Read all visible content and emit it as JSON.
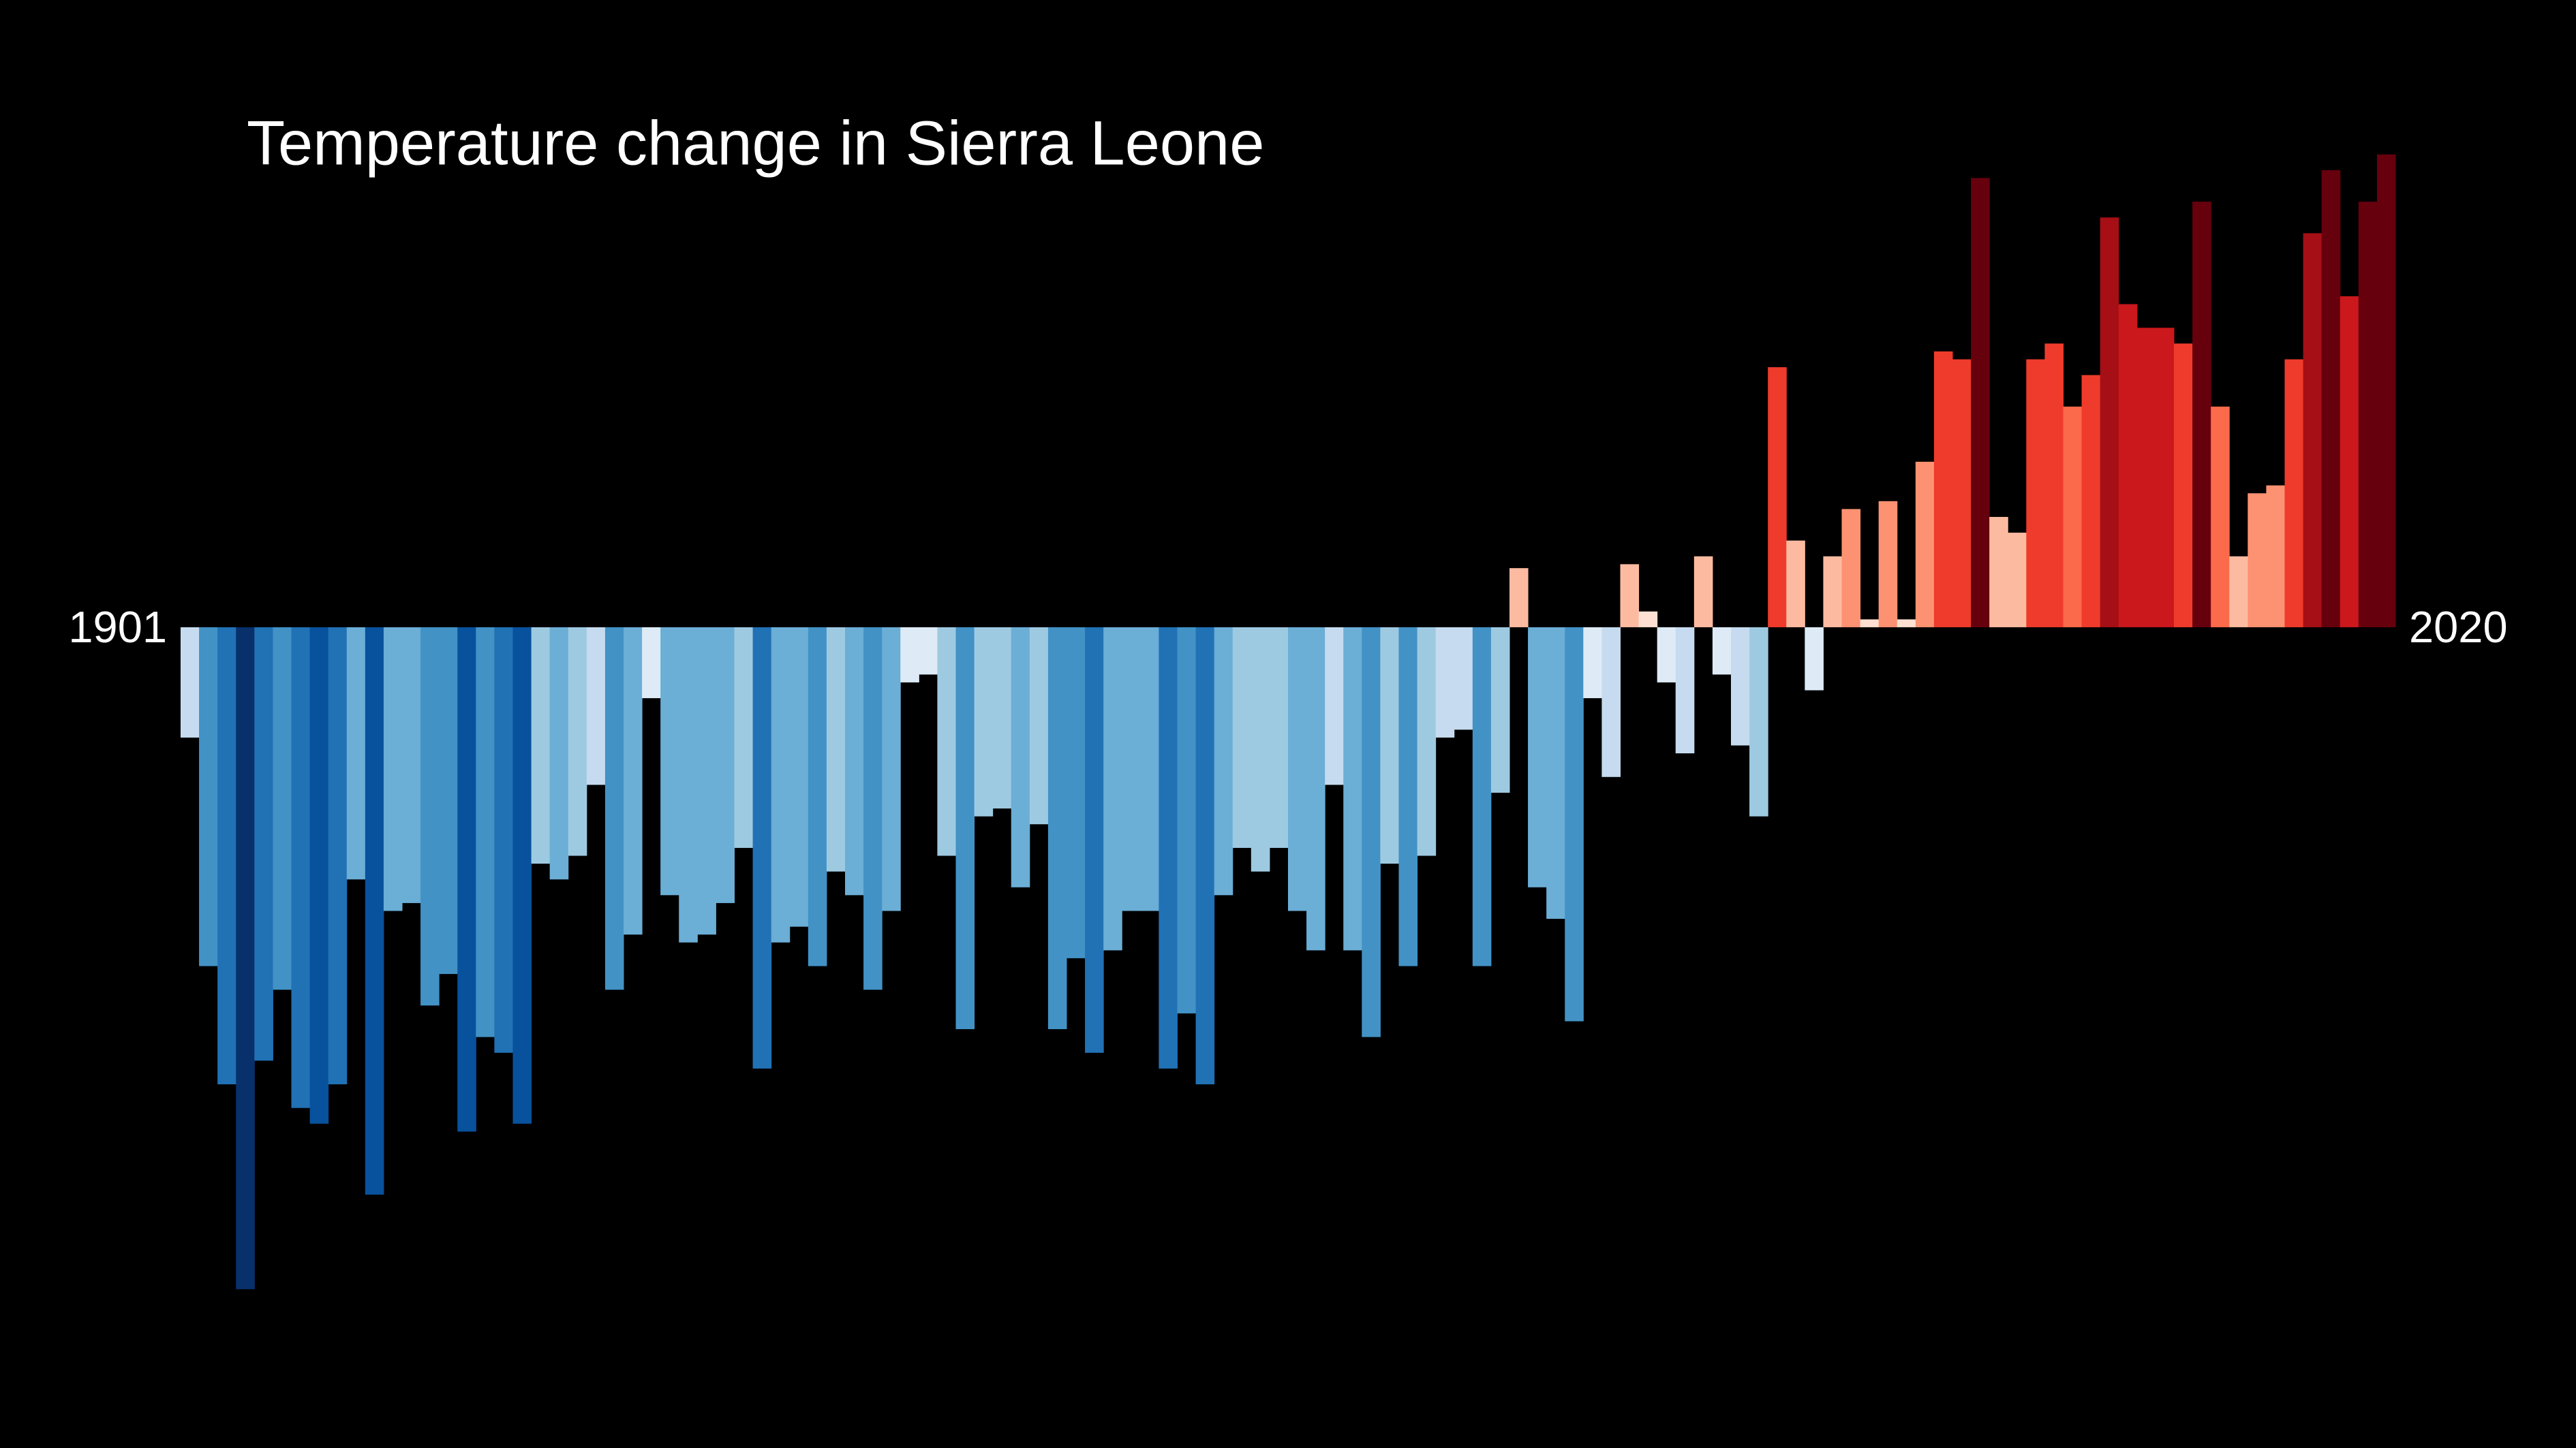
{
  "chart_data": {
    "type": "bar",
    "title": "Temperature change in Sierra Leone",
    "categories": [
      "1901",
      null,
      null,
      null,
      null,
      null,
      null,
      null,
      null,
      null,
      null,
      null,
      null,
      null,
      null,
      null,
      null,
      null,
      null,
      null,
      null,
      null,
      null,
      null,
      null,
      null,
      null,
      null,
      null,
      null,
      null,
      null,
      null,
      null,
      null,
      null,
      null,
      null,
      null,
      null,
      null,
      null,
      null,
      null,
      null,
      null,
      null,
      null,
      null,
      null,
      null,
      null,
      null,
      null,
      null,
      null,
      null,
      null,
      null,
      null,
      null,
      null,
      null,
      null,
      null,
      null,
      null,
      null,
      null,
      null,
      null,
      null,
      null,
      null,
      null,
      null,
      null,
      null,
      null,
      null,
      null,
      null,
      null,
      null,
      null,
      null,
      null,
      null,
      null,
      null,
      null,
      null,
      null,
      null,
      null,
      null,
      null,
      null,
      null,
      null,
      null,
      null,
      null,
      null,
      null,
      null,
      null,
      null,
      null,
      null,
      null,
      null,
      null,
      null,
      null,
      null,
      null,
      null,
      null,
      "2020"
    ],
    "values": [
      -0.14,
      -0.43,
      -0.58,
      -0.84,
      -0.55,
      -0.46,
      -0.61,
      -0.63,
      -0.58,
      -0.32,
      -0.72,
      -0.36,
      -0.35,
      -0.48,
      -0.44,
      -0.64,
      -0.52,
      -0.54,
      -0.63,
      -0.3,
      -0.32,
      -0.29,
      -0.2,
      -0.46,
      -0.39,
      -0.09,
      -0.34,
      -0.4,
      -0.39,
      -0.35,
      -0.28,
      -0.56,
      -0.4,
      -0.38,
      -0.43,
      -0.31,
      -0.34,
      -0.46,
      -0.36,
      -0.07,
      -0.06,
      -0.29,
      -0.51,
      -0.24,
      -0.23,
      -0.33,
      -0.25,
      -0.51,
      -0.42,
      -0.54,
      -0.41,
      -0.36,
      -0.36,
      -0.56,
      -0.49,
      -0.58,
      -0.34,
      -0.28,
      -0.31,
      -0.28,
      -0.36,
      -0.41,
      -0.2,
      -0.41,
      -0.52,
      -0.3,
      -0.43,
      -0.29,
      -0.14,
      -0.13,
      -0.43,
      -0.21,
      0.075,
      -0.33,
      -0.37,
      -0.5,
      -0.09,
      -0.19,
      0.08,
      0.02,
      -0.07,
      -0.16,
      0.09,
      -0.06,
      -0.15,
      -0.24,
      0.33,
      0.11,
      -0.08,
      0.09,
      0.15,
      0.01,
      0.16,
      0.01,
      0.21,
      0.35,
      0.34,
      0.57,
      0.14,
      0.12,
      0.34,
      0.36,
      0.28,
      0.32,
      0.52,
      0.41,
      0.38,
      0.38,
      0.36,
      0.54,
      0.28,
      0.09,
      0.17,
      0.18,
      0.34,
      0.5,
      0.58,
      0.42,
      0.54,
      0.6
    ],
    "ylim": [
      -1.0,
      0.7
    ],
    "clim": [
      -0.84,
      0.6
    ],
    "colors": [
      "#08306b",
      "#08519c",
      "#2171b5",
      "#4292c6",
      "#6baed6",
      "#9ecae1",
      "#c6dbef",
      "#deebf7",
      "#fee0d2",
      "#fcbba1",
      "#fc9272",
      "#fb6a4a",
      "#ef3b2c",
      "#cb181d",
      "#a50f15",
      "#67000d"
    ]
  }
}
